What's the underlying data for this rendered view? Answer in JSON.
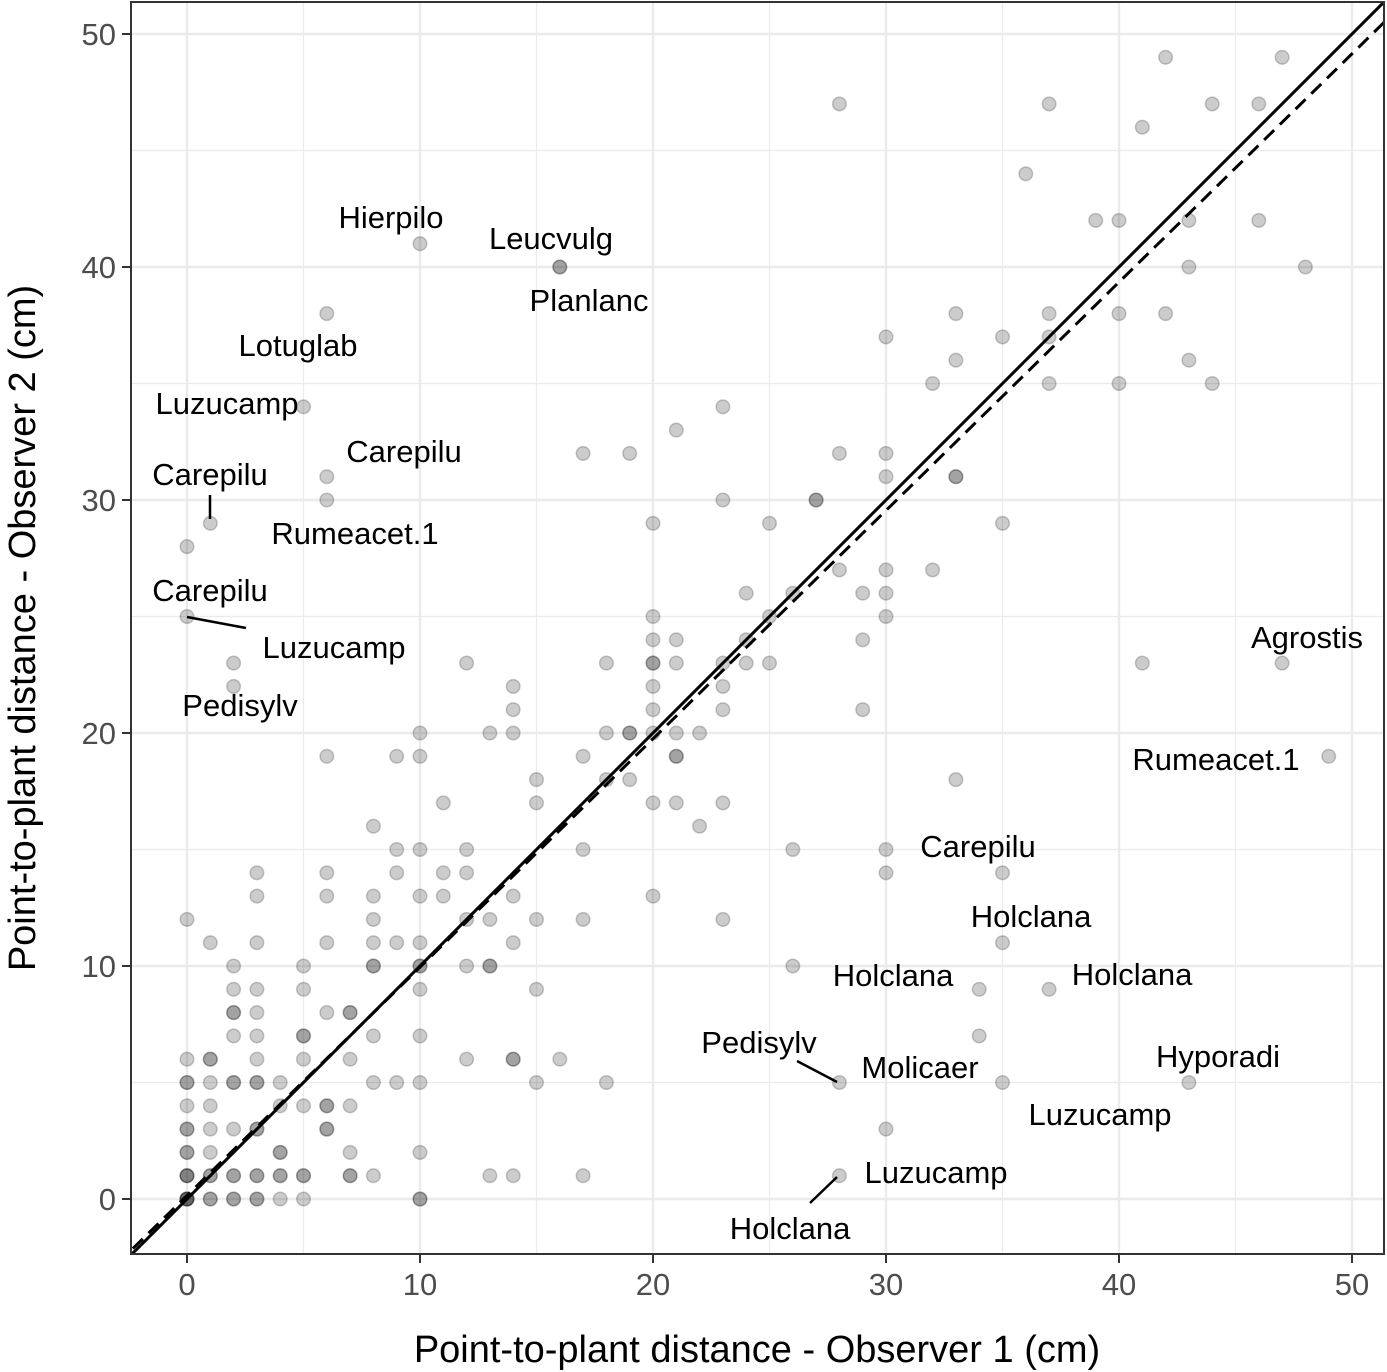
{
  "chart_data": {
    "type": "scatter",
    "title": "",
    "xlabel": "Point-to-plant distance - Observer 1 (cm)",
    "ylabel": "Point-to-plant distance - Observer 2 (cm)",
    "xlim": [
      -2.4,
      51.5
    ],
    "ylim": [
      -2.3,
      51.5
    ],
    "xticks": [
      0,
      10,
      20,
      30,
      40,
      50
    ],
    "yticks": [
      0,
      10,
      20,
      30,
      40,
      50
    ],
    "grid": true,
    "point_color": "#000000",
    "point_opacity": 0.2,
    "lines": [
      {
        "name": "1:1 line",
        "style": "solid",
        "intercept": 0,
        "slope": 1
      },
      {
        "name": "fitted line",
        "style": "dashed",
        "intercept": 0.15,
        "slope": 0.98
      }
    ],
    "points": [
      [
        0,
        0
      ],
      [
        0,
        0
      ],
      [
        0,
        0
      ],
      [
        0,
        0
      ],
      [
        0,
        1
      ],
      [
        0,
        1
      ],
      [
        0,
        1
      ],
      [
        0,
        2
      ],
      [
        0,
        2
      ],
      [
        0,
        3
      ],
      [
        0,
        3
      ],
      [
        0,
        4
      ],
      [
        0,
        5
      ],
      [
        0,
        5
      ],
      [
        0,
        6
      ],
      [
        0,
        12
      ],
      [
        0,
        25
      ],
      [
        0,
        28
      ],
      [
        1,
        0
      ],
      [
        1,
        0
      ],
      [
        1,
        1
      ],
      [
        1,
        1
      ],
      [
        1,
        2
      ],
      [
        1,
        3
      ],
      [
        1,
        4
      ],
      [
        1,
        5
      ],
      [
        1,
        6
      ],
      [
        1,
        6
      ],
      [
        1,
        11
      ],
      [
        1,
        29
      ],
      [
        2,
        0
      ],
      [
        2,
        0
      ],
      [
        2,
        1
      ],
      [
        2,
        1
      ],
      [
        2,
        3
      ],
      [
        2,
        5
      ],
      [
        2,
        5
      ],
      [
        2,
        7
      ],
      [
        2,
        8
      ],
      [
        2,
        8
      ],
      [
        2,
        9
      ],
      [
        2,
        10
      ],
      [
        2,
        22
      ],
      [
        2,
        23
      ],
      [
        3,
        0
      ],
      [
        3,
        0
      ],
      [
        3,
        1
      ],
      [
        3,
        1
      ],
      [
        3,
        3
      ],
      [
        3,
        3
      ],
      [
        3,
        5
      ],
      [
        3,
        5
      ],
      [
        3,
        6
      ],
      [
        3,
        7
      ],
      [
        3,
        8
      ],
      [
        3,
        9
      ],
      [
        3,
        11
      ],
      [
        3,
        13
      ],
      [
        3,
        14
      ],
      [
        4,
        0
      ],
      [
        4,
        1
      ],
      [
        4,
        1
      ],
      [
        4,
        2
      ],
      [
        4,
        2
      ],
      [
        4,
        4
      ],
      [
        4,
        5
      ],
      [
        5,
        0
      ],
      [
        5,
        1
      ],
      [
        5,
        1
      ],
      [
        5,
        4
      ],
      [
        5,
        6
      ],
      [
        5,
        7
      ],
      [
        5,
        7
      ],
      [
        5,
        9
      ],
      [
        5,
        10
      ],
      [
        5,
        34
      ],
      [
        6,
        3
      ],
      [
        6,
        3
      ],
      [
        6,
        4
      ],
      [
        6,
        4
      ],
      [
        6,
        8
      ],
      [
        6,
        11
      ],
      [
        6,
        13
      ],
      [
        6,
        14
      ],
      [
        6,
        19
      ],
      [
        6,
        30
      ],
      [
        6,
        31
      ],
      [
        6,
        38
      ],
      [
        7,
        1
      ],
      [
        7,
        1
      ],
      [
        7,
        2
      ],
      [
        7,
        4
      ],
      [
        7,
        6
      ],
      [
        7,
        8
      ],
      [
        7,
        8
      ],
      [
        8,
        1
      ],
      [
        8,
        5
      ],
      [
        8,
        7
      ],
      [
        8,
        10
      ],
      [
        8,
        10
      ],
      [
        8,
        11
      ],
      [
        8,
        12
      ],
      [
        8,
        13
      ],
      [
        8,
        16
      ],
      [
        9,
        5
      ],
      [
        9,
        11
      ],
      [
        9,
        14
      ],
      [
        9,
        15
      ],
      [
        9,
        19
      ],
      [
        10,
        0
      ],
      [
        10,
        0
      ],
      [
        10,
        2
      ],
      [
        10,
        5
      ],
      [
        10,
        7
      ],
      [
        10,
        9
      ],
      [
        10,
        10
      ],
      [
        10,
        10
      ],
      [
        10,
        11
      ],
      [
        10,
        13
      ],
      [
        10,
        15
      ],
      [
        10,
        19
      ],
      [
        10,
        20
      ],
      [
        10,
        41
      ],
      [
        11,
        13
      ],
      [
        11,
        14
      ],
      [
        11,
        17
      ],
      [
        12,
        6
      ],
      [
        12,
        10
      ],
      [
        12,
        12
      ],
      [
        12,
        14
      ],
      [
        12,
        15
      ],
      [
        12,
        23
      ],
      [
        13,
        1
      ],
      [
        13,
        10
      ],
      [
        13,
        10
      ],
      [
        13,
        12
      ],
      [
        13,
        20
      ],
      [
        14,
        1
      ],
      [
        14,
        6
      ],
      [
        14,
        6
      ],
      [
        14,
        11
      ],
      [
        14,
        13
      ],
      [
        14,
        20
      ],
      [
        14,
        21
      ],
      [
        14,
        22
      ],
      [
        15,
        5
      ],
      [
        15,
        9
      ],
      [
        15,
        12
      ],
      [
        15,
        17
      ],
      [
        15,
        18
      ],
      [
        16,
        6
      ],
      [
        16,
        40
      ],
      [
        16,
        40
      ],
      [
        17,
        1
      ],
      [
        17,
        12
      ],
      [
        17,
        15
      ],
      [
        17,
        19
      ],
      [
        17,
        32
      ],
      [
        18,
        5
      ],
      [
        18,
        18
      ],
      [
        18,
        20
      ],
      [
        18,
        23
      ],
      [
        19,
        18
      ],
      [
        19,
        20
      ],
      [
        19,
        20
      ],
      [
        19,
        32
      ],
      [
        20,
        13
      ],
      [
        20,
        17
      ],
      [
        20,
        20
      ],
      [
        20,
        21
      ],
      [
        20,
        22
      ],
      [
        20,
        23
      ],
      [
        20,
        23
      ],
      [
        20,
        24
      ],
      [
        20,
        25
      ],
      [
        20,
        29
      ],
      [
        21,
        17
      ],
      [
        21,
        19
      ],
      [
        21,
        19
      ],
      [
        21,
        20
      ],
      [
        21,
        23
      ],
      [
        21,
        24
      ],
      [
        21,
        33
      ],
      [
        22,
        16
      ],
      [
        22,
        20
      ],
      [
        23,
        12
      ],
      [
        23,
        17
      ],
      [
        23,
        21
      ],
      [
        23,
        22
      ],
      [
        23,
        23
      ],
      [
        23,
        30
      ],
      [
        23,
        34
      ],
      [
        24,
        23
      ],
      [
        24,
        24
      ],
      [
        24,
        26
      ],
      [
        25,
        23
      ],
      [
        25,
        25
      ],
      [
        25,
        29
      ],
      [
        26,
        10
      ],
      [
        26,
        15
      ],
      [
        26,
        26
      ],
      [
        27,
        30
      ],
      [
        27,
        30
      ],
      [
        28,
        1
      ],
      [
        28,
        5
      ],
      [
        28,
        27
      ],
      [
        28,
        32
      ],
      [
        28,
        47
      ],
      [
        29,
        21
      ],
      [
        29,
        24
      ],
      [
        29,
        26
      ],
      [
        30,
        3
      ],
      [
        30,
        14
      ],
      [
        30,
        15
      ],
      [
        30,
        25
      ],
      [
        30,
        26
      ],
      [
        30,
        27
      ],
      [
        30,
        31
      ],
      [
        30,
        32
      ],
      [
        30,
        37
      ],
      [
        32,
        27
      ],
      [
        32,
        35
      ],
      [
        33,
        18
      ],
      [
        33,
        31
      ],
      [
        33,
        31
      ],
      [
        33,
        36
      ],
      [
        33,
        38
      ],
      [
        34,
        7
      ],
      [
        34,
        9
      ],
      [
        35,
        5
      ],
      [
        35,
        11
      ],
      [
        35,
        14
      ],
      [
        35,
        29
      ],
      [
        35,
        37
      ],
      [
        36,
        44
      ],
      [
        37,
        9
      ],
      [
        37,
        35
      ],
      [
        37,
        37
      ],
      [
        37,
        38
      ],
      [
        37,
        47
      ],
      [
        39,
        42
      ],
      [
        40,
        35
      ],
      [
        40,
        38
      ],
      [
        40,
        42
      ],
      [
        41,
        23
      ],
      [
        41,
        46
      ],
      [
        42,
        38
      ],
      [
        42,
        49
      ],
      [
        43,
        5
      ],
      [
        43,
        36
      ],
      [
        43,
        40
      ],
      [
        43,
        42
      ],
      [
        44,
        35
      ],
      [
        44,
        47
      ],
      [
        46,
        42
      ],
      [
        46,
        47
      ],
      [
        47,
        23
      ],
      [
        47,
        49
      ],
      [
        48,
        40
      ],
      [
        49,
        19
      ]
    ],
    "annotations": [
      {
        "text": "Hierpilo",
        "x": 10,
        "y": 41
      },
      {
        "text": "Leucvulg",
        "x": 16,
        "y": 40
      },
      {
        "text": "Planlanc",
        "x": 16,
        "y": 40
      },
      {
        "text": "Lotuglab",
        "x": 6,
        "y": 38
      },
      {
        "text": "Luzucamp",
        "x": 5,
        "y": 34
      },
      {
        "text": "Carepilu",
        "x": 6,
        "y": 31
      },
      {
        "text": "Carepilu",
        "x": 1,
        "y": 29
      },
      {
        "text": "Rumeacet.1",
        "x": 6,
        "y": 30
      },
      {
        "text": "Carepilu",
        "x": 0,
        "y": 28
      },
      {
        "text": "Luzucamp",
        "x": 0,
        "y": 25
      },
      {
        "text": "Pedisylv",
        "x": 2,
        "y": 22
      },
      {
        "text": "Agrostis",
        "x": 47,
        "y": 23
      },
      {
        "text": "Rumeacet.1",
        "x": 49,
        "y": 19
      },
      {
        "text": "Carepilu",
        "x": 30,
        "y": 15
      },
      {
        "text": "Holclana",
        "x": 35,
        "y": 11
      },
      {
        "text": "Holclana",
        "x": 34,
        "y": 9
      },
      {
        "text": "Holclana",
        "x": 37,
        "y": 9
      },
      {
        "text": "Pedisylv",
        "x": 28,
        "y": 5
      },
      {
        "text": "Molicaer",
        "x": 28,
        "y": 5
      },
      {
        "text": "Hyporadi",
        "x": 43,
        "y": 5
      },
      {
        "text": "Luzucamp",
        "x": 35,
        "y": 5
      },
      {
        "text": "Luzucamp",
        "x": 28,
        "y": 1
      },
      {
        "text": "Holclana",
        "x": 28,
        "y": 1
      }
    ]
  }
}
